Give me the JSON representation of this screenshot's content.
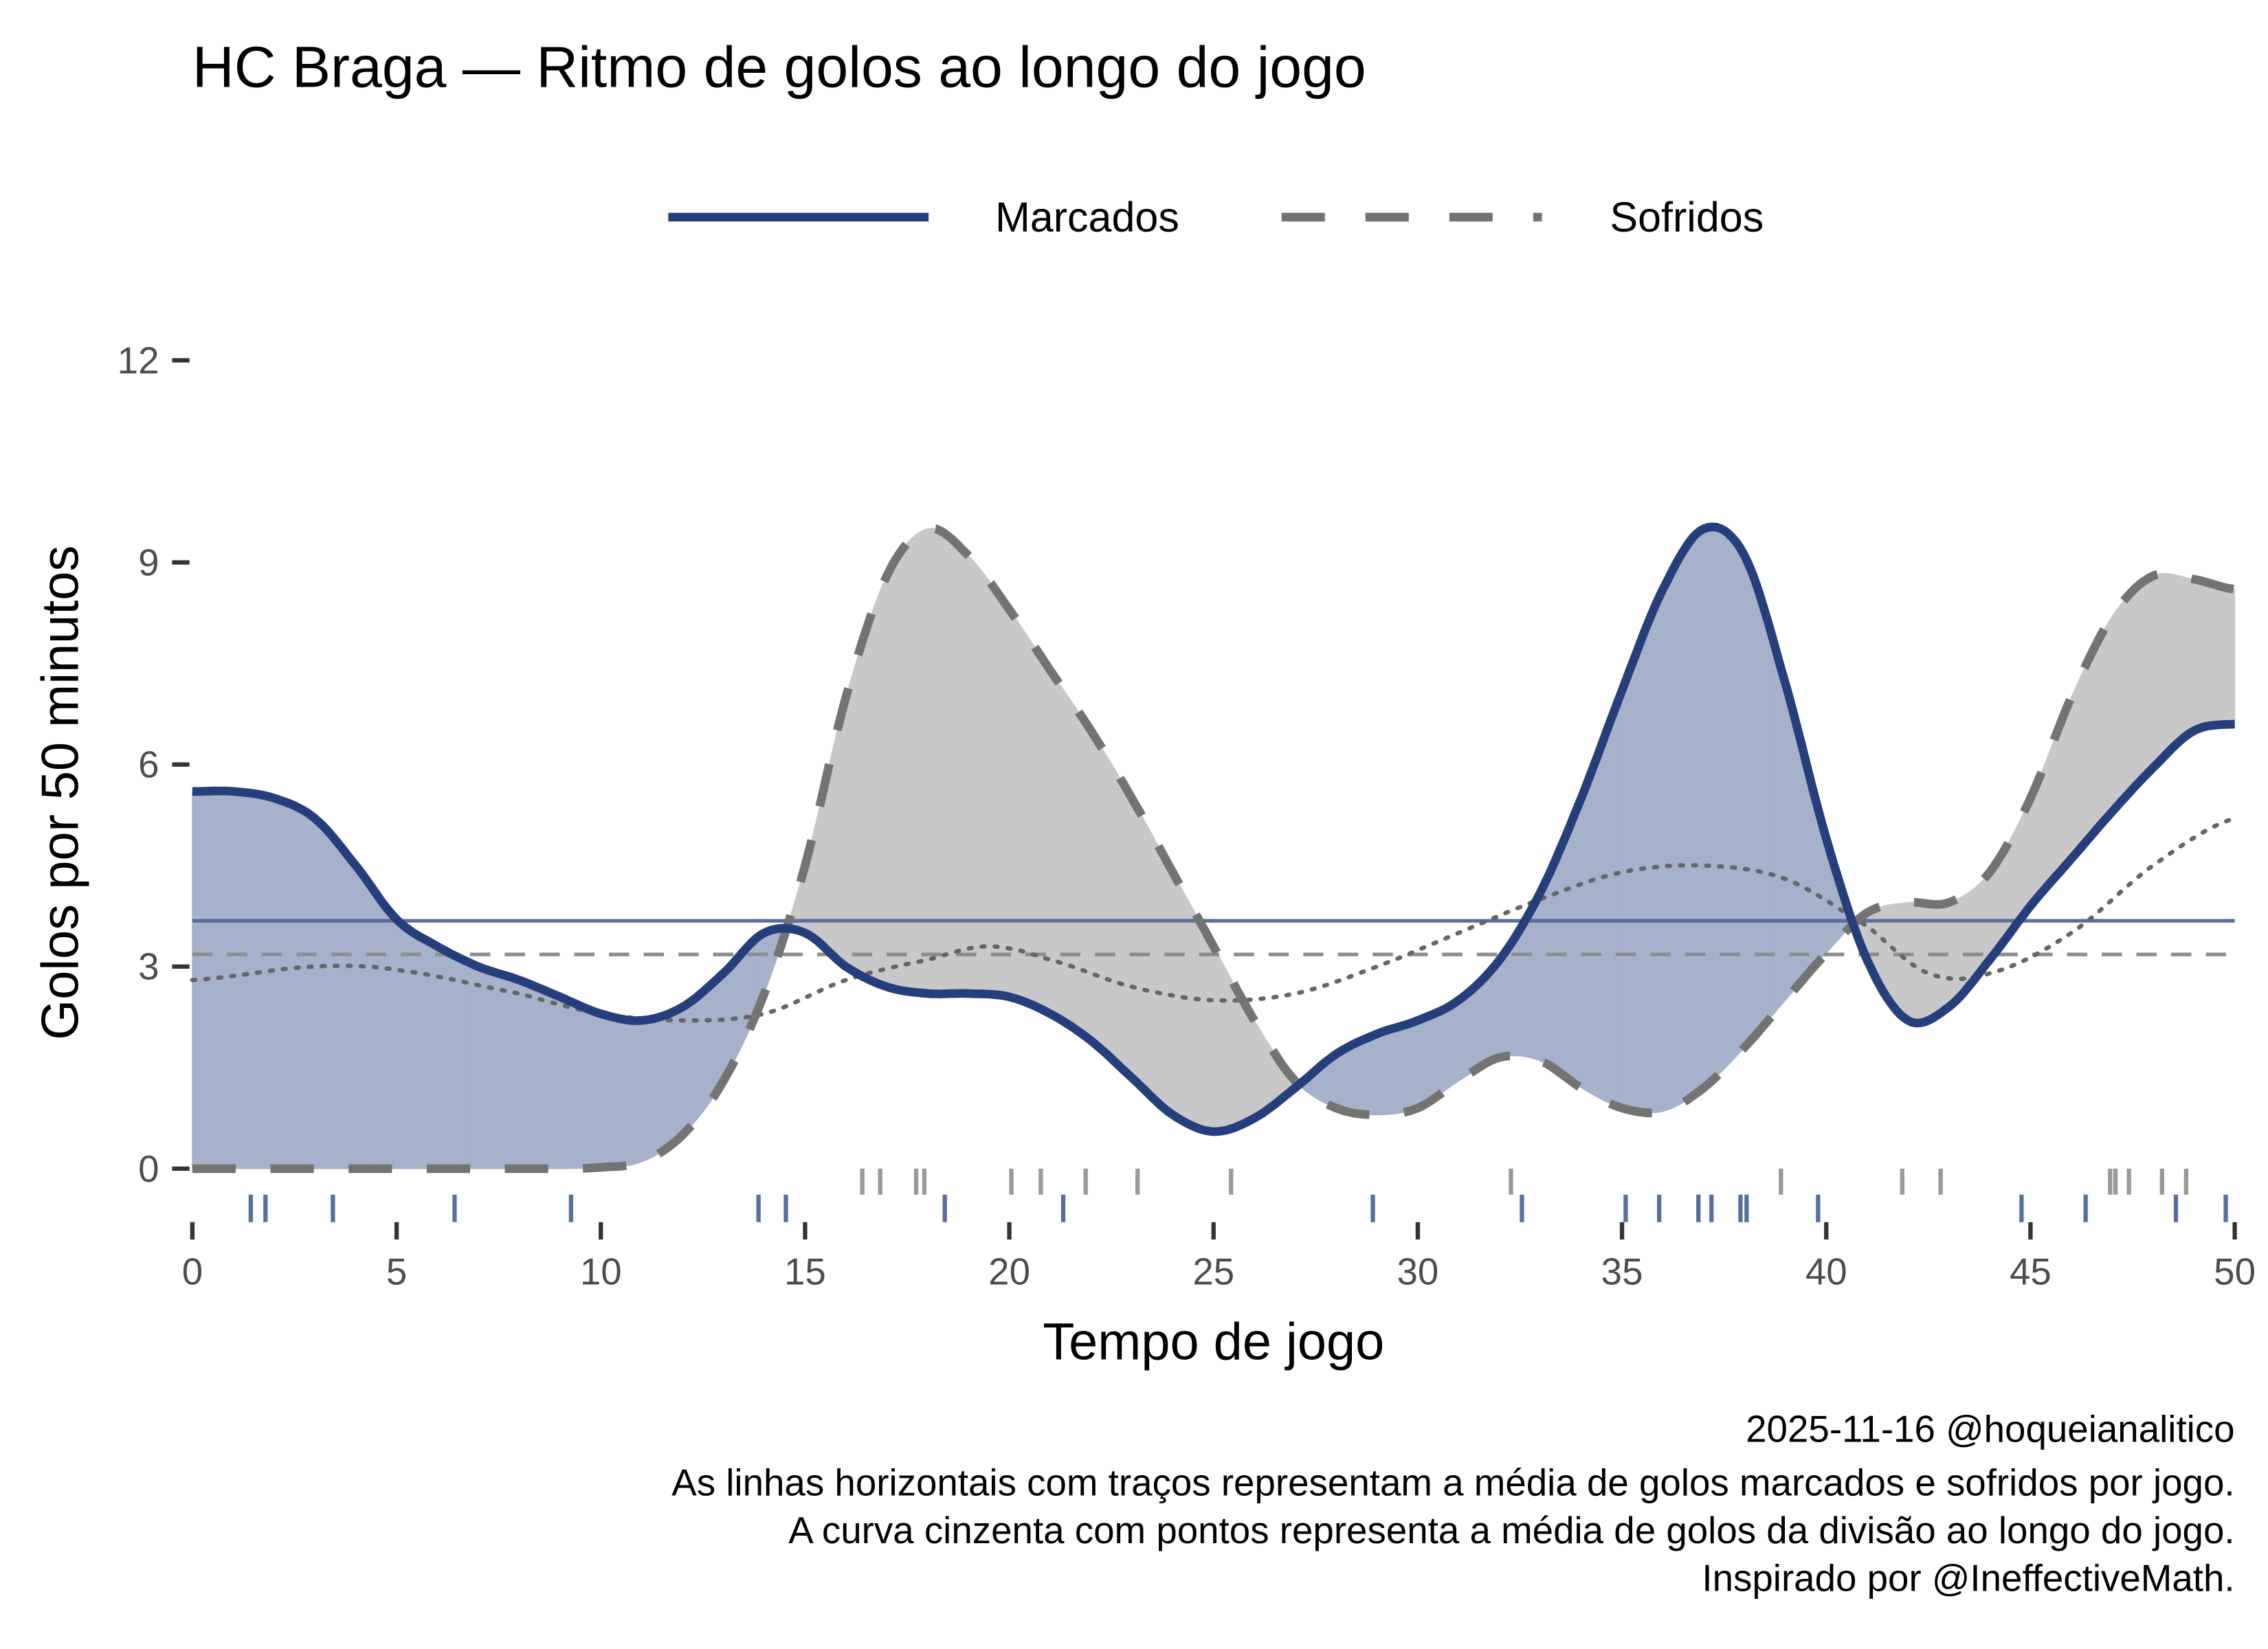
{
  "chart_data": {
    "type": "line",
    "title": "HC Braga — Ritmo de golos ao longo do jogo",
    "xlabel": "Tempo de jogo",
    "ylabel": "Golos por 50 minutos",
    "xlim": [
      0,
      50
    ],
    "ylim": [
      0,
      12
    ],
    "xticks": [
      0,
      5,
      10,
      15,
      20,
      25,
      30,
      35,
      40,
      45,
      50
    ],
    "yticks": [
      0,
      3,
      6,
      9,
      12
    ],
    "grid": false,
    "legend_position": "top",
    "colors": {
      "marcados": "#253f7c",
      "sofridos": "#737373",
      "fill_marcados": "#a6b1ca",
      "fill_sofridos": "#c8c8c8",
      "division": "#666666",
      "mean_marcados": "#5a6e9e",
      "mean_sofridos": "#8c8c8c"
    },
    "series": [
      {
        "name": "Marcados",
        "x": [
          0,
          1,
          2,
          3,
          4,
          5,
          6,
          7,
          8,
          9,
          10,
          11,
          12,
          13,
          14,
          15,
          16,
          17,
          18,
          19,
          20,
          21,
          22,
          23,
          24,
          25,
          26,
          27,
          28,
          29,
          30,
          31,
          32,
          33,
          34,
          35,
          36,
          37,
          38,
          39,
          40,
          41,
          42,
          43,
          44,
          45,
          46,
          47,
          48,
          49,
          50
        ],
        "values": [
          5.6,
          5.6,
          5.5,
          5.2,
          4.5,
          3.7,
          3.3,
          3.0,
          2.8,
          2.55,
          2.3,
          2.2,
          2.4,
          2.9,
          3.5,
          3.5,
          3.0,
          2.7,
          2.6,
          2.6,
          2.55,
          2.3,
          1.9,
          1.35,
          0.8,
          0.55,
          0.75,
          1.2,
          1.7,
          2.0,
          2.2,
          2.5,
          3.1,
          4.1,
          5.5,
          7.1,
          8.6,
          9.5,
          9.1,
          7.2,
          4.9,
          3.1,
          2.2,
          2.4,
          3.1,
          3.9,
          4.6,
          5.3,
          5.95,
          6.5,
          6.6
        ]
      },
      {
        "name": "Sofridos",
        "x": [
          0,
          1,
          2,
          3,
          4,
          5,
          6,
          7,
          8,
          9,
          10,
          11,
          12,
          13,
          14,
          15,
          16,
          17,
          18,
          19,
          20,
          21,
          22,
          23,
          24,
          25,
          26,
          27,
          28,
          29,
          30,
          31,
          32,
          33,
          34,
          35,
          36,
          37,
          38,
          39,
          40,
          41,
          42,
          43,
          44,
          45,
          46,
          47,
          48,
          49,
          50
        ],
        "values": [
          0,
          0,
          0,
          0,
          0,
          0,
          0,
          0,
          0,
          0,
          0.02,
          0.1,
          0.5,
          1.3,
          2.6,
          4.5,
          7.0,
          8.8,
          9.5,
          9.1,
          8.3,
          7.4,
          6.5,
          5.5,
          4.4,
          3.3,
          2.2,
          1.3,
          0.9,
          0.8,
          0.9,
          1.3,
          1.65,
          1.6,
          1.2,
          0.9,
          0.85,
          1.2,
          1.8,
          2.5,
          3.2,
          3.8,
          3.95,
          3.95,
          4.4,
          5.5,
          7.0,
          8.2,
          8.8,
          8.75,
          8.6
        ]
      },
      {
        "name": "Média da divisão",
        "x": [
          0,
          3,
          5,
          8,
          10,
          12,
          14,
          16,
          18,
          19.5,
          21,
          23,
          25,
          27,
          29,
          31,
          33,
          35,
          37,
          39,
          41,
          42.5,
          44,
          46,
          48,
          50
        ],
        "values": [
          2.8,
          3.0,
          2.95,
          2.6,
          2.3,
          2.2,
          2.3,
          2.8,
          3.1,
          3.3,
          3.1,
          2.7,
          2.5,
          2.6,
          3.0,
          3.5,
          4.0,
          4.4,
          4.5,
          4.3,
          3.6,
          2.9,
          2.9,
          3.5,
          4.5,
          5.2
        ]
      }
    ],
    "means": {
      "marcados": 3.68,
      "sofridos": 3.18
    },
    "rug_marcados": [
      1.43,
      1.79,
      3.44,
      6.42,
      9.27,
      13.86,
      14.53,
      18.42,
      21.32,
      28.9,
      32.55,
      35.09,
      35.91,
      36.87,
      37.19,
      37.9,
      38.05,
      39.8,
      44.78,
      46.35,
      48.56,
      49.78
    ],
    "rug_sofridos": [
      16.4,
      16.84,
      17.72,
      17.92,
      20.05,
      20.77,
      21.87,
      23.14,
      25.43,
      32.28,
      38.89,
      41.86,
      42.8,
      46.95,
      47.08,
      47.41,
      48.22,
      48.81
    ],
    "legend": {
      "marcados": "Marcados",
      "sofridos": "Sofridos"
    },
    "caption": [
      "2025-11-16 @hoqueianalitico",
      "As linhas horizontais com traços representam a média de golos marcados e sofridos por jogo.",
      "A curva cinzenta com pontos representa a média de golos da divisão ao longo do jogo.",
      "Inspirado por @IneffectiveMath."
    ]
  }
}
